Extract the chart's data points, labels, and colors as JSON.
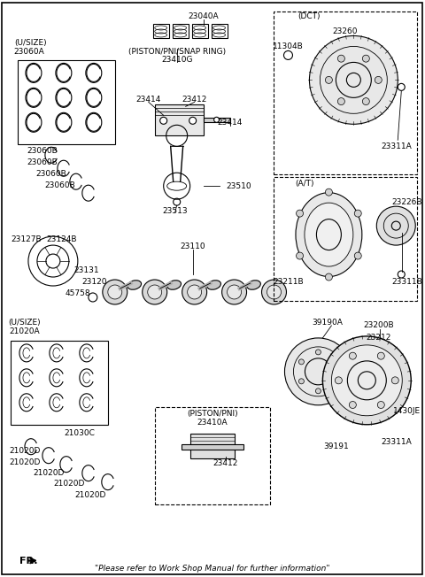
{
  "title": "",
  "bg_color": "#ffffff",
  "line_color": "#000000",
  "footer_text": "\"Please refer to Work Shop Manual for further information\"",
  "fr_label": "FR.",
  "parts": {
    "top_center_label": "23040A",
    "piston_ring_label": "(PISTON/PNI/SNAP RING)",
    "piston_ring_part": "23410G",
    "upper_bearing_label": "(U/SIZE)",
    "upper_bearing_part_a": "23060A",
    "upper_bearing_parts_b": [
      "23060B",
      "23060B",
      "23060B",
      "23060B"
    ],
    "piston_pin_labels": [
      "23414",
      "23412",
      "23414"
    ],
    "rod_part": "23510",
    "rod_bolt_part": "23513",
    "crankshaft_main": "23110",
    "crank_pulley": "23127B",
    "crank_pulley2": "23124B",
    "crank_gear": "23131",
    "crank_sprocket": "23120",
    "woodruff_key": "45758",
    "lower_bearing_label": "(U/SIZE)",
    "lower_bearing_part_a": "21020A",
    "lower_bearing_parts_d": [
      "21020D",
      "21020D",
      "21020D",
      "21020D",
      "21020D"
    ],
    "lower_bearing_c": "21030C",
    "piston_box_label": "(PISTON/PNI)",
    "piston_box_part1": "23410A",
    "piston_box_part2": "23412",
    "drive_plate_part": "39190A",
    "ring_gear_part": "23200B",
    "crank_angle_sensor": "23212",
    "drive_plate_bolt": "1430JE",
    "flywheel_bolt_a": "23311A",
    "flywheel_b": "39191",
    "dct_label": "(DCT)",
    "dct_flywheel": "23260",
    "dct_bolt1": "11304B",
    "dct_bolt2": "23311A",
    "at_label": "(A/T)",
    "at_flexplate": "23211B",
    "at_adapter": "23226B",
    "at_bolt": "23311B"
  }
}
